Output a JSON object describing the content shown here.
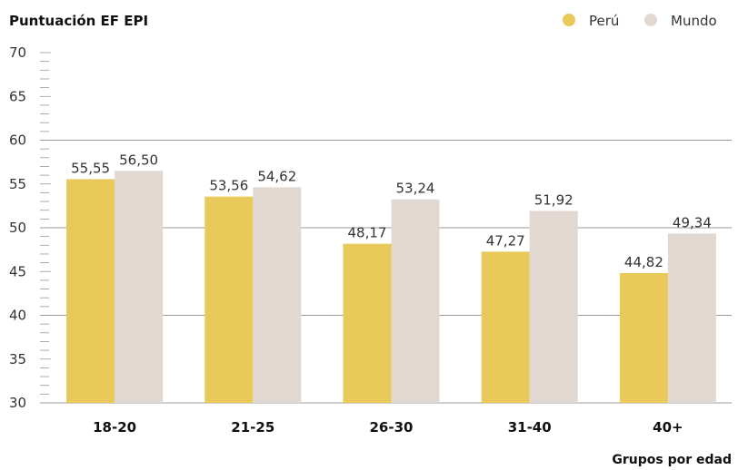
{
  "chart_data": {
    "type": "bar",
    "ylabel": "Puntuación EF EPI",
    "xlabel": "Grupos por edad",
    "categories": [
      "18-20",
      "21-25",
      "26-30",
      "31-40",
      "40+"
    ],
    "series": [
      {
        "name": "Perú",
        "color": "#e8c95a",
        "values": [
          55.55,
          53.56,
          48.17,
          47.27,
          44.82
        ],
        "labels": [
          "55,55",
          "53,56",
          "48,17",
          "47,27",
          "44,82"
        ]
      },
      {
        "name": "Mundo",
        "color": "#e2d8d2",
        "values": [
          56.5,
          54.62,
          53.24,
          51.92,
          49.34
        ],
        "labels": [
          "56,50",
          "54,62",
          "53,24",
          "51,92",
          "49,34"
        ]
      }
    ],
    "ylim": [
      30,
      70
    ],
    "yticks": [
      30,
      35,
      40,
      45,
      50,
      55,
      60,
      65,
      70
    ],
    "gridlines": [
      40,
      50,
      60
    ],
    "legend_position": "top-right"
  }
}
